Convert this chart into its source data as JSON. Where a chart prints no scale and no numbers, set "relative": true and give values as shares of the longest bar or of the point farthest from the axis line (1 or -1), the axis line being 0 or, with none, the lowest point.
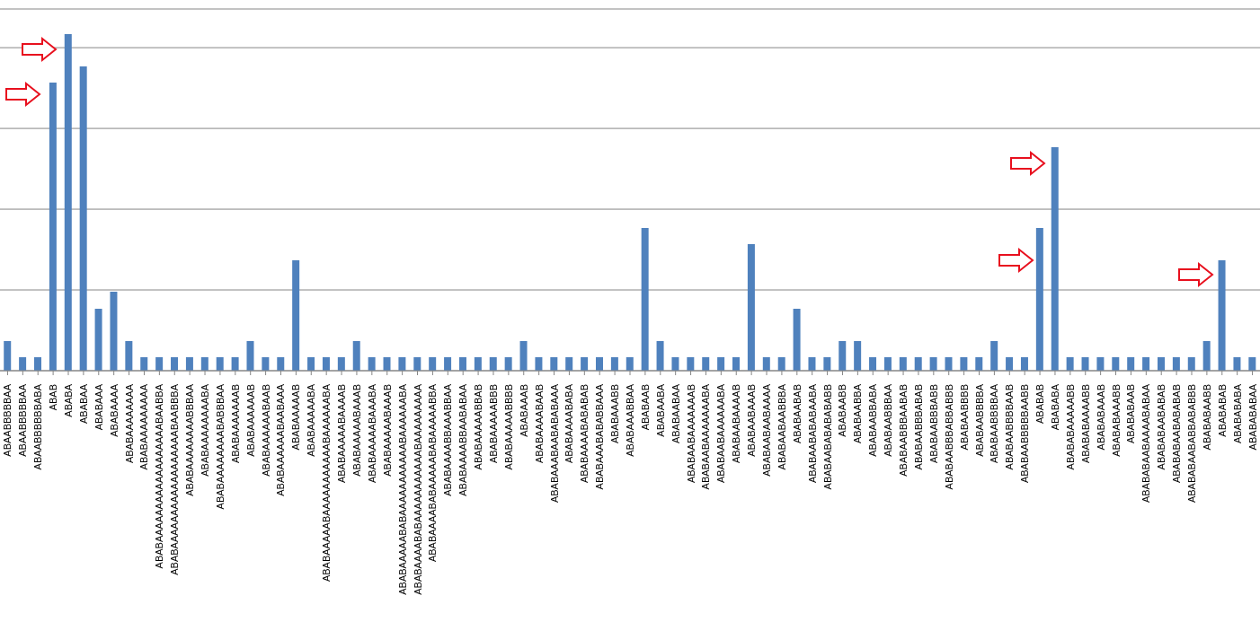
{
  "chart_data": {
    "type": "bar",
    "relative": true,
    "grid": "y",
    "color": "#4f81bd",
    "categories": [
      "ABAABBBBBAA",
      "ABAABBBBBAA",
      "ABAABBBBBBABA",
      "ABAB",
      "ABABA",
      "ABABAA",
      "ABABAAA",
      "ABABAAAA",
      "ABABAAAAAAAA",
      "ABABAAAAAAAAA",
      "ABABAAAAAAAAAAAAAAAAAABAABBA",
      "ABABAAAAAAAAAAAAAAAAAABAABBBA",
      "ABABAAAAAAAABBBAA",
      "ABABAAAAAAAABA",
      "ABABAAAAAAAABABBBAA",
      "ABABAAAAAAAB",
      "ABABAAAAAAB",
      "ABABAAAAAABAAB",
      "ABABAAAAAABAABAAA",
      "ABABAAAAAB",
      "ABABAAAAABA",
      "ABABAAAAABAAAAAAAAAAABAAAAAABA",
      "ABABAAAAABAAAAB",
      "ABABAAAAABAAAB",
      "ABABAAAAABAAABA",
      "ABABAAAAABAAAB",
      "ABABAAAAABABAAAAAAAAAAABAAAAAABA",
      "ABABAAAABABAAAAAAAAAAABAAAAAAAAA",
      "ABABAAAABABAAAAABABAAAAABBA",
      "ABABAAAABBAAABBAA",
      "ABABAAAABBAABABAA",
      "ABABAAAAABBAB",
      "ABABAAAAABBB",
      "ABABAAAAABBBB",
      "ABABAAAB",
      "ABABAAAABAAB",
      "ABABAAABAABABABAAA",
      "ABABAAAABABA",
      "ABABAAAABABABAB",
      "ABABAAABABABBAAA",
      "ABABAAABB",
      "ABABAAABBAA",
      "ABABAAB",
      "ABABAABA",
      "ABABAABAA",
      "ABABAABAAAAAAAB",
      "ABABAABAAAAAAABA",
      "ABABAABAAAAAABA",
      "ABABAABAAAAB",
      "ABABAABAAAB",
      "ABABAABAABAAAA",
      "ABABAABAABBBA",
      "ABABAABAB",
      "ABABAABABABAABA",
      "ABABAABABABABABB",
      "ABABAABB",
      "ABABAABBA",
      "ABABAABBABA",
      "ABABAABBBAA",
      "ABABAABBBAABAB",
      "ABABAABBBABAB",
      "ABABAABBBABB",
      "ABABAABBBABBABBB",
      "ABABAABBBB",
      "ABABAABBBBA",
      "ABABAABBBBAA",
      "ABABAABBBBAAB",
      "ABABAABBBBBAABB",
      "ABABAB",
      "ABABABA",
      "ABABABAAAAABB",
      "ABABABAAAABB",
      "ABABABAAAB",
      "ABABABAAABB",
      "ABABABAAB",
      "ABABABAABAAAABABAA",
      "ABABABAABABAB",
      "ABABABAABABABAB",
      "ABABABAABABBABABBB",
      "ABABABAABB",
      "ABABABAB",
      "ABABABABA",
      "ABABABABAA"
    ],
    "values": [
      0.088,
      0.04,
      0.04,
      0.856,
      1,
      0.904,
      0.184,
      0.235,
      0.088,
      0.04,
      0.04,
      0.04,
      0.04,
      0.04,
      0.04,
      0.04,
      0.088,
      0.04,
      0.04,
      0.328,
      0.04,
      0.04,
      0.04,
      0.088,
      0.04,
      0.04,
      0.04,
      0.04,
      0.04,
      0.04,
      0.04,
      0.04,
      0.04,
      0.04,
      0.088,
      0.04,
      0.04,
      0.04,
      0.04,
      0.04,
      0.04,
      0.04,
      0.424,
      0.088,
      0.04,
      0.04,
      0.04,
      0.04,
      0.04,
      0.376,
      0.04,
      0.04,
      0.184,
      0.04,
      0.04,
      0.088,
      0.088,
      0.04,
      0.04,
      0.04,
      0.04,
      0.04,
      0.04,
      0.04,
      0.04,
      0.088,
      0.04,
      0.04,
      0.424,
      0.664,
      0.04,
      0.04,
      0.04,
      0.04,
      0.04,
      0.04,
      0.04,
      0.04,
      0.04,
      0.088,
      0.328,
      0.04,
      0.04
    ]
  }
}
